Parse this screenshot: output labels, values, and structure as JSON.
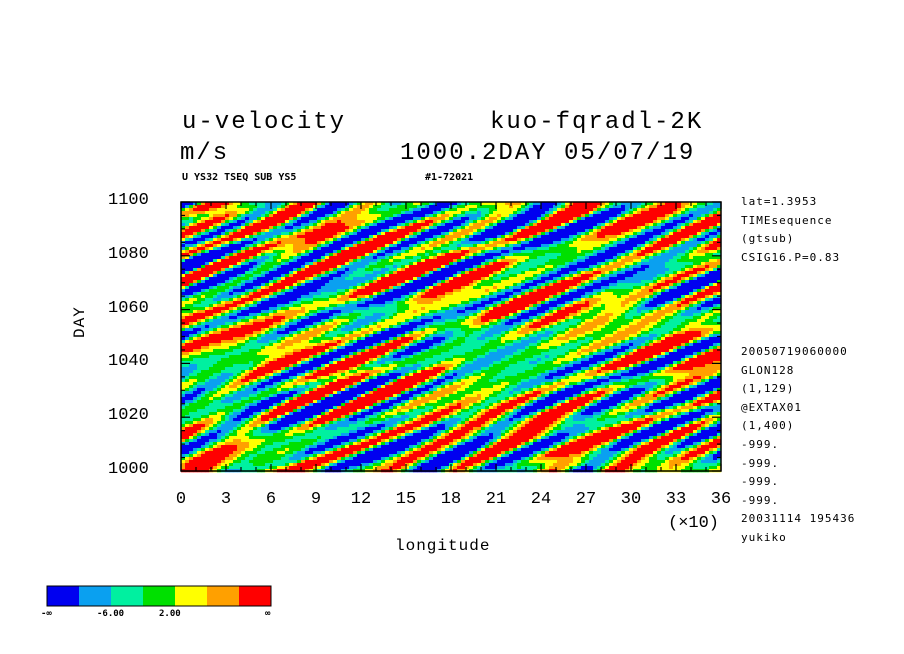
{
  "header": {
    "left_line1": "u-velocity",
    "left_line2": "m/s",
    "right_line1": "kuo-fqradl-2K",
    "right_line2": "1000.2DAY 05/07/19",
    "sub_left": "U YS32 TSEQ SUB YS5",
    "sub_right": "#1-72021"
  },
  "side_info": {
    "top": [
      "lat=1.3953",
      "TIMEsequence",
      "(gtsub)",
      "CSIG16.P=0.83"
    ],
    "bottom": [
      "20050719060000",
      "GLON128",
      "(1,129)",
      "@EXTAX01",
      "(1,400)",
      "-999.",
      "-999.",
      "-999.",
      "-999.",
      "20031114 195436",
      "yukiko"
    ]
  },
  "colorbar": {
    "colors": [
      "#0000f0",
      "#0aa0f0",
      "#00f0a0",
      "#00e000",
      "#ffff00",
      "#ffa000",
      "#ff0000"
    ],
    "labels": [
      "-∞",
      "-6.00",
      "2.00",
      "∞"
    ]
  },
  "chart_data": {
    "type": "heatmap",
    "title": "u-velocity",
    "xlabel": "longitude",
    "ylabel": "DAY",
    "x_multiplier": "(×10)",
    "xlim": [
      0,
      36
    ],
    "ylim": [
      1000,
      1100
    ],
    "x_ticks": [
      "0",
      "3",
      "6",
      "9",
      "12",
      "15",
      "18",
      "21",
      "24",
      "27",
      "30",
      "33",
      "36"
    ],
    "y_ticks": [
      "1000",
      "1020",
      "1040",
      "1060",
      "1080",
      "1100"
    ],
    "units": "m/s",
    "levels": [
      "-∞",
      "-6.00",
      "2.00",
      "∞"
    ],
    "palette": [
      "#0000f0",
      "#0aa0f0",
      "#00f0a0",
      "#00e000",
      "#ffff00",
      "#ffa000",
      "#ff0000"
    ]
  }
}
